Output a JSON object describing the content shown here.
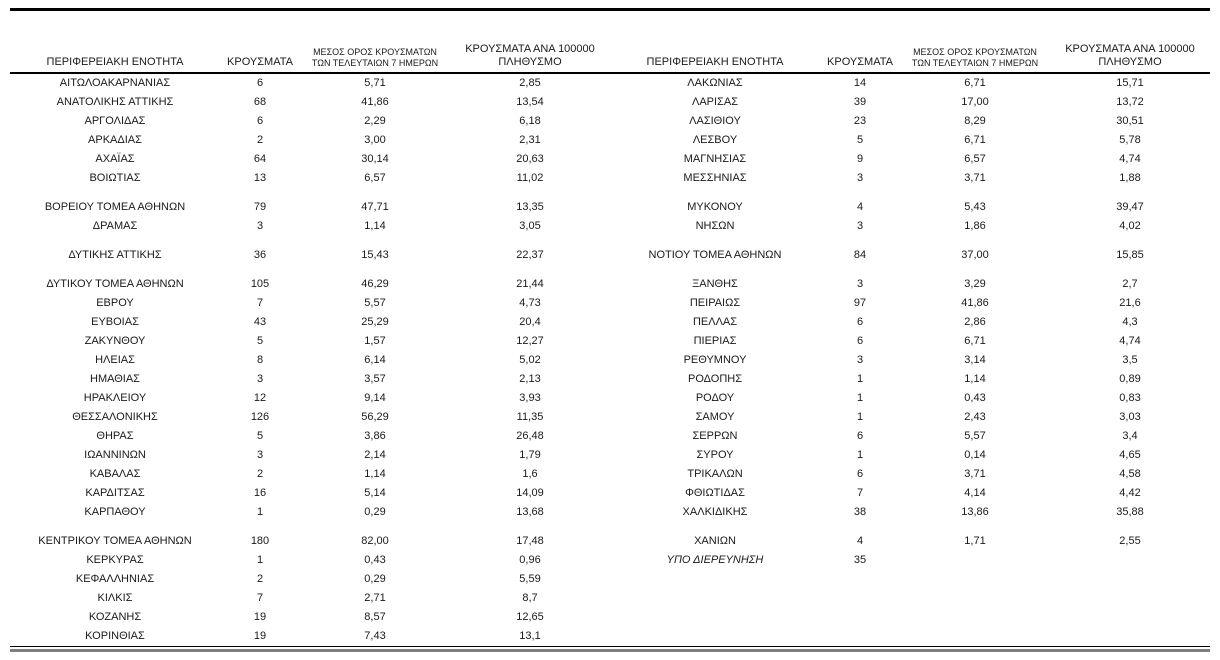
{
  "page": {
    "background": "#ffffff",
    "text_color": "#1a1a1a",
    "rule_color": "#000000",
    "bottom_rule_color": "#7f7f7f"
  },
  "table": {
    "column_headers": {
      "region": "ΠΕΡΙΦΕΡΕΙΑΚΗ ΕΝΟΤΗΤΑ",
      "cases": "ΚΡΟΥΣΜΑΤΑ",
      "avg7": "ΜΕΣΟΣ ΟΡΟΣ ΚΡΟΥΣΜΑΤΩΝ\nΤΩΝ ΤΕΛΕΥΤΑΙΩΝ 7 ΗΜΕΡΩΝ",
      "per100k": "ΚΡΟΥΣΜΑΤΑ ΑΝΑ 100000\nΠΛΗΘΥΣΜΟ"
    },
    "rows": [
      {
        "left": {
          "region": "ΑΙΤΩΛΟΑΚΑΡΝΑΝΙΑΣ",
          "cases": "6",
          "avg7": "5,71",
          "per100k": "2,85"
        },
        "right": {
          "region": "ΛΑΚΩΝΙΑΣ",
          "cases": "14",
          "avg7": "6,71",
          "per100k": "15,71"
        }
      },
      {
        "left": {
          "region": "ΑΝΑΤΟΛΙΚΗΣ ΑΤΤΙΚΗΣ",
          "cases": "68",
          "avg7": "41,86",
          "per100k": "13,54"
        },
        "right": {
          "region": "ΛΑΡΙΣΑΣ",
          "cases": "39",
          "avg7": "17,00",
          "per100k": "13,72"
        }
      },
      {
        "left": {
          "region": "ΑΡΓΟΛΙΔΑΣ",
          "cases": "6",
          "avg7": "2,29",
          "per100k": "6,18"
        },
        "right": {
          "region": "ΛΑΣΙΘΙΟΥ",
          "cases": "23",
          "avg7": "8,29",
          "per100k": "30,51"
        }
      },
      {
        "left": {
          "region": "ΑΡΚΑΔΙΑΣ",
          "cases": "2",
          "avg7": "3,00",
          "per100k": "2,31"
        },
        "right": {
          "region": "ΛΕΣΒΟΥ",
          "cases": "5",
          "avg7": "6,71",
          "per100k": "5,78"
        }
      },
      {
        "left": {
          "region": "ΑΧΑΪΑΣ",
          "cases": "64",
          "avg7": "30,14",
          "per100k": "20,63"
        },
        "right": {
          "region": "ΜΑΓΝΗΣΙΑΣ",
          "cases": "9",
          "avg7": "6,57",
          "per100k": "4,74"
        }
      },
      {
        "left": {
          "region": "ΒΟΙΩΤΙΑΣ",
          "cases": "13",
          "avg7": "6,57",
          "per100k": "11,02"
        },
        "right": {
          "region": "ΜΕΣΣΗΝΙΑΣ",
          "cases": "3",
          "avg7": "3,71",
          "per100k": "1,88"
        }
      },
      {
        "spacer": true
      },
      {
        "left": {
          "region": "ΒΟΡΕΙΟΥ ΤΟΜΕΑ ΑΘΗΝΩΝ",
          "cases": "79",
          "avg7": "47,71",
          "per100k": "13,35"
        },
        "right": {
          "region": "ΜΥΚΟΝΟΥ",
          "cases": "4",
          "avg7": "5,43",
          "per100k": "39,47"
        }
      },
      {
        "left": {
          "region": "ΔΡΑΜΑΣ",
          "cases": "3",
          "avg7": "1,14",
          "per100k": "3,05"
        },
        "right": {
          "region": "ΝΗΣΩΝ",
          "cases": "3",
          "avg7": "1,86",
          "per100k": "4,02"
        }
      },
      {
        "spacer": true
      },
      {
        "left": {
          "region": "ΔΥΤΙΚΗΣ ΑΤΤΙΚΗΣ",
          "cases": "36",
          "avg7": "15,43",
          "per100k": "22,37"
        },
        "right": {
          "region": "ΝΟΤΙΟΥ ΤΟΜΕΑ ΑΘΗΝΩΝ",
          "cases": "84",
          "avg7": "37,00",
          "per100k": "15,85"
        }
      },
      {
        "spacer": true
      },
      {
        "left": {
          "region": "ΔΥΤΙΚΟΥ ΤΟΜΕΑ ΑΘΗΝΩΝ",
          "cases": "105",
          "avg7": "46,29",
          "per100k": "21,44"
        },
        "right": {
          "region": "ΞΑΝΘΗΣ",
          "cases": "3",
          "avg7": "3,29",
          "per100k": "2,7"
        }
      },
      {
        "left": {
          "region": "ΕΒΡΟΥ",
          "cases": "7",
          "avg7": "5,57",
          "per100k": "4,73"
        },
        "right": {
          "region": "ΠΕΙΡΑΙΩΣ",
          "cases": "97",
          "avg7": "41,86",
          "per100k": "21,6"
        }
      },
      {
        "left": {
          "region": "ΕΥΒΟΙΑΣ",
          "cases": "43",
          "avg7": "25,29",
          "per100k": "20,4"
        },
        "right": {
          "region": "ΠΕΛΛΑΣ",
          "cases": "6",
          "avg7": "2,86",
          "per100k": "4,3"
        }
      },
      {
        "left": {
          "region": "ΖΑΚΥΝΘΟΥ",
          "cases": "5",
          "avg7": "1,57",
          "per100k": "12,27"
        },
        "right": {
          "region": "ΠΙΕΡΙΑΣ",
          "cases": "6",
          "avg7": "6,71",
          "per100k": "4,74"
        }
      },
      {
        "left": {
          "region": "ΗΛΕΙΑΣ",
          "cases": "8",
          "avg7": "6,14",
          "per100k": "5,02"
        },
        "right": {
          "region": "ΡΕΘΥΜΝΟΥ",
          "cases": "3",
          "avg7": "3,14",
          "per100k": "3,5"
        }
      },
      {
        "left": {
          "region": "ΗΜΑΘΙΑΣ",
          "cases": "3",
          "avg7": "3,57",
          "per100k": "2,13"
        },
        "right": {
          "region": "ΡΟΔΟΠΗΣ",
          "cases": "1",
          "avg7": "1,14",
          "per100k": "0,89"
        }
      },
      {
        "left": {
          "region": "ΗΡΑΚΛΕΙΟΥ",
          "cases": "12",
          "avg7": "9,14",
          "per100k": "3,93"
        },
        "right": {
          "region": "ΡΟΔΟΥ",
          "cases": "1",
          "avg7": "0,43",
          "per100k": "0,83"
        }
      },
      {
        "left": {
          "region": "ΘΕΣΣΑΛΟΝΙΚΗΣ",
          "cases": "126",
          "avg7": "56,29",
          "per100k": "11,35"
        },
        "right": {
          "region": "ΣΑΜΟΥ",
          "cases": "1",
          "avg7": "2,43",
          "per100k": "3,03"
        }
      },
      {
        "left": {
          "region": "ΘΗΡΑΣ",
          "cases": "5",
          "avg7": "3,86",
          "per100k": "26,48"
        },
        "right": {
          "region": "ΣΕΡΡΩΝ",
          "cases": "6",
          "avg7": "5,57",
          "per100k": "3,4"
        }
      },
      {
        "left": {
          "region": "ΙΩΑΝΝΙΝΩΝ",
          "cases": "3",
          "avg7": "2,14",
          "per100k": "1,79"
        },
        "right": {
          "region": "ΣΥΡΟΥ",
          "cases": "1",
          "avg7": "0,14",
          "per100k": "4,65"
        }
      },
      {
        "left": {
          "region": "ΚΑΒΑΛΑΣ",
          "cases": "2",
          "avg7": "1,14",
          "per100k": "1,6"
        },
        "right": {
          "region": "ΤΡΙΚΑΛΩΝ",
          "cases": "6",
          "avg7": "3,71",
          "per100k": "4,58"
        }
      },
      {
        "left": {
          "region": "ΚΑΡΔΙΤΣΑΣ",
          "cases": "16",
          "avg7": "5,14",
          "per100k": "14,09"
        },
        "right": {
          "region": "ΦΘΙΩΤΙΔΑΣ",
          "cases": "7",
          "avg7": "4,14",
          "per100k": "4,42"
        }
      },
      {
        "left": {
          "region": "ΚΑΡΠΑΘΟΥ",
          "cases": "1",
          "avg7": "0,29",
          "per100k": "13,68"
        },
        "right": {
          "region": "ΧΑΛΚΙΔΙΚΗΣ",
          "cases": "38",
          "avg7": "13,86",
          "per100k": "35,88"
        }
      },
      {
        "spacer": true
      },
      {
        "left": {
          "region": "ΚΕΝΤΡΙΚΟΥ ΤΟΜΕΑ ΑΘΗΝΩΝ",
          "cases": "180",
          "avg7": "82,00",
          "per100k": "17,48"
        },
        "right": {
          "region": "ΧΑΝΙΩΝ",
          "cases": "4",
          "avg7": "1,71",
          "per100k": "2,55"
        }
      },
      {
        "left": {
          "region": "ΚΕΡΚΥΡΑΣ",
          "cases": "1",
          "avg7": "0,43",
          "per100k": "0,96"
        },
        "right": {
          "region": "ΥΠΟ ΔΙΕΡΕΥΝΗΣΗ",
          "cases": "35",
          "avg7": "",
          "per100k": "",
          "italic": true
        }
      },
      {
        "left": {
          "region": "ΚΕΦΑΛΛΗΝΙΑΣ",
          "cases": "2",
          "avg7": "0,29",
          "per100k": "5,59"
        },
        "right": null
      },
      {
        "left": {
          "region": "ΚΙΛΚΙΣ",
          "cases": "7",
          "avg7": "2,71",
          "per100k": "8,7"
        },
        "right": null
      },
      {
        "left": {
          "region": "ΚΟΖΑΝΗΣ",
          "cases": "19",
          "avg7": "8,57",
          "per100k": "12,65"
        },
        "right": null
      },
      {
        "left": {
          "region": "ΚΟΡΙΝΘΙΑΣ",
          "cases": "19",
          "avg7": "7,43",
          "per100k": "13,1"
        },
        "right": null
      }
    ]
  }
}
